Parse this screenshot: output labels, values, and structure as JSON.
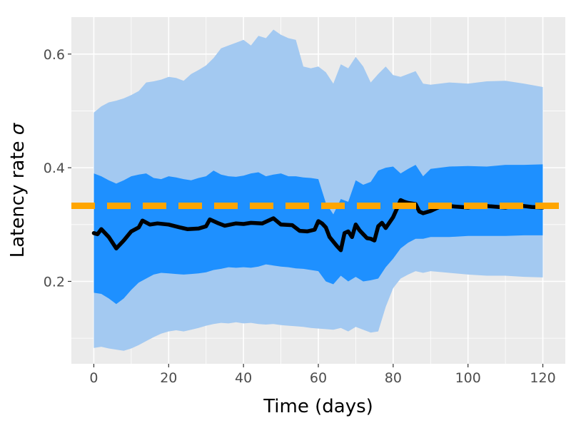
{
  "chart_data": {
    "type": "area",
    "xlabel": "Time (days)",
    "ylabel_text": "Latency rate",
    "ylabel_symbol": "σ",
    "xlim": [
      -6,
      126
    ],
    "ylim": [
      0.055,
      0.665
    ],
    "x_ticks": [
      0,
      20,
      40,
      60,
      80,
      100,
      120
    ],
    "x_tick_labels": [
      "0",
      "20",
      "40",
      "60",
      "80",
      "100",
      "120"
    ],
    "y_ticks": [
      0.2,
      0.4,
      0.6
    ],
    "y_tick_labels": [
      "0.2",
      "0.4",
      "0.6"
    ],
    "grid": true,
    "reference_line": {
      "y": 0.333,
      "style": "dashed",
      "color": "#ffa500"
    },
    "colors": {
      "panel": "#ebebeb",
      "grid": "#ffffff",
      "outer_band": "#a3c9f1",
      "inner_band": "#1e90ff",
      "median": "#000000"
    },
    "outer_band": {
      "x": [
        0,
        2,
        4,
        6,
        8,
        10,
        12,
        14,
        16,
        18,
        20,
        22,
        24,
        26,
        28,
        30,
        32,
        34,
        36,
        38,
        40,
        42,
        44,
        46,
        48,
        50,
        52,
        54,
        56,
        58,
        60,
        62,
        64,
        66,
        68,
        70,
        72,
        74,
        76,
        78,
        80,
        82,
        84,
        86,
        88,
        90,
        95,
        100,
        105,
        110,
        115,
        120
      ],
      "lower": [
        0.083,
        0.085,
        0.082,
        0.08,
        0.078,
        0.082,
        0.088,
        0.095,
        0.102,
        0.108,
        0.112,
        0.114,
        0.112,
        0.115,
        0.118,
        0.122,
        0.125,
        0.127,
        0.126,
        0.128,
        0.126,
        0.127,
        0.125,
        0.124,
        0.125,
        0.123,
        0.122,
        0.121,
        0.12,
        0.118,
        0.117,
        0.116,
        0.115,
        0.118,
        0.112,
        0.12,
        0.115,
        0.11,
        0.112,
        0.155,
        0.188,
        0.205,
        0.212,
        0.218,
        0.215,
        0.218,
        0.215,
        0.212,
        0.21,
        0.21,
        0.208,
        0.207
      ],
      "upper": [
        0.497,
        0.508,
        0.515,
        0.518,
        0.522,
        0.528,
        0.535,
        0.55,
        0.552,
        0.555,
        0.56,
        0.558,
        0.553,
        0.565,
        0.572,
        0.58,
        0.593,
        0.61,
        0.615,
        0.62,
        0.625,
        0.615,
        0.632,
        0.628,
        0.643,
        0.634,
        0.628,
        0.625,
        0.578,
        0.575,
        0.578,
        0.568,
        0.548,
        0.582,
        0.575,
        0.595,
        0.578,
        0.55,
        0.565,
        0.578,
        0.563,
        0.56,
        0.565,
        0.57,
        0.548,
        0.546,
        0.55,
        0.548,
        0.552,
        0.553,
        0.548,
        0.542
      ]
    },
    "inner_band": {
      "x": [
        0,
        2,
        4,
        6,
        8,
        10,
        12,
        14,
        16,
        18,
        20,
        22,
        24,
        26,
        28,
        30,
        32,
        34,
        36,
        38,
        40,
        42,
        44,
        46,
        48,
        50,
        52,
        54,
        56,
        58,
        60,
        62,
        64,
        66,
        68,
        70,
        72,
        74,
        76,
        78,
        80,
        82,
        84,
        86,
        88,
        90,
        95,
        100,
        105,
        110,
        115,
        120
      ],
      "lower": [
        0.18,
        0.178,
        0.17,
        0.16,
        0.17,
        0.185,
        0.198,
        0.205,
        0.212,
        0.215,
        0.214,
        0.213,
        0.212,
        0.213,
        0.214,
        0.216,
        0.22,
        0.222,
        0.225,
        0.224,
        0.225,
        0.224,
        0.226,
        0.23,
        0.228,
        0.226,
        0.225,
        0.223,
        0.222,
        0.22,
        0.218,
        0.2,
        0.195,
        0.21,
        0.2,
        0.208,
        0.2,
        0.202,
        0.205,
        0.225,
        0.24,
        0.258,
        0.268,
        0.275,
        0.275,
        0.278,
        0.278,
        0.28,
        0.28,
        0.28,
        0.281,
        0.281
      ],
      "upper": [
        0.39,
        0.385,
        0.378,
        0.372,
        0.378,
        0.385,
        0.388,
        0.39,
        0.382,
        0.38,
        0.385,
        0.383,
        0.38,
        0.378,
        0.382,
        0.385,
        0.395,
        0.388,
        0.385,
        0.384,
        0.386,
        0.39,
        0.392,
        0.385,
        0.388,
        0.39,
        0.385,
        0.385,
        0.383,
        0.382,
        0.38,
        0.338,
        0.318,
        0.345,
        0.34,
        0.378,
        0.37,
        0.375,
        0.395,
        0.4,
        0.402,
        0.39,
        0.398,
        0.405,
        0.385,
        0.398,
        0.402,
        0.403,
        0.402,
        0.405,
        0.405,
        0.406
      ]
    },
    "median": {
      "x": [
        0,
        1,
        2,
        4,
        6,
        8,
        10,
        12,
        13,
        15,
        17,
        20,
        23,
        25,
        28,
        30,
        31,
        33,
        35,
        38,
        40,
        42,
        45,
        48,
        50,
        53,
        55,
        57,
        59,
        60,
        61,
        62,
        63,
        65,
        66,
        67,
        68,
        69,
        70,
        71,
        72,
        73,
        74,
        75,
        76,
        77,
        78,
        80,
        81,
        82,
        83,
        84,
        86,
        87,
        88,
        90,
        93,
        96,
        100,
        103,
        106,
        110,
        113,
        117,
        120
      ],
      "y": [
        0.285,
        0.283,
        0.292,
        0.278,
        0.258,
        0.272,
        0.288,
        0.295,
        0.307,
        0.3,
        0.302,
        0.3,
        0.295,
        0.292,
        0.293,
        0.297,
        0.309,
        0.303,
        0.298,
        0.302,
        0.301,
        0.303,
        0.302,
        0.311,
        0.3,
        0.299,
        0.289,
        0.288,
        0.291,
        0.306,
        0.302,
        0.295,
        0.278,
        0.262,
        0.255,
        0.285,
        0.288,
        0.278,
        0.3,
        0.29,
        0.283,
        0.276,
        0.275,
        0.272,
        0.297,
        0.303,
        0.294,
        0.313,
        0.328,
        0.343,
        0.34,
        0.338,
        0.336,
        0.323,
        0.32,
        0.324,
        0.333,
        0.332,
        0.33,
        0.334,
        0.332,
        0.33,
        0.334,
        0.331,
        0.33
      ]
    }
  }
}
